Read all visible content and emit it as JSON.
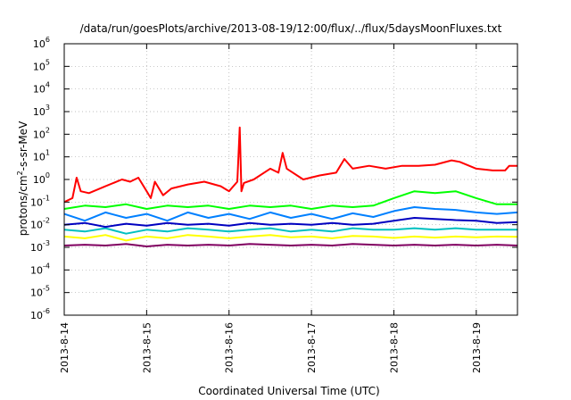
{
  "chart_data": {
    "type": "line",
    "title": "/data/run/goesPlots/archive/2013-08-19/12:00/flux/../flux/5daysMoonFluxes.txt",
    "xlabel": "Coordinated Universal Time (UTC)",
    "ylabel_parts": {
      "pre": "protons/cm",
      "sup": "2",
      "post": "-s-sr-MeV"
    },
    "y_scale": "log",
    "ylim": [
      1e-06,
      1000000.0
    ],
    "xlim": [
      0,
      5.5
    ],
    "grid": true,
    "legend": "none",
    "x_ticks": [
      {
        "x": 0,
        "label": "2013-8-14"
      },
      {
        "x": 1,
        "label": "2013-8-15"
      },
      {
        "x": 2,
        "label": "2013-8-16"
      },
      {
        "x": 3,
        "label": "2013-8-17"
      },
      {
        "x": 4,
        "label": "2013-8-18"
      },
      {
        "x": 5,
        "label": "2013-8-19"
      }
    ],
    "y_ticks": [
      {
        "base": "10",
        "exp": "-6",
        "value": 1e-06
      },
      {
        "base": "10",
        "exp": "-5",
        "value": 1e-05
      },
      {
        "base": "10",
        "exp": "-4",
        "value": 0.0001
      },
      {
        "base": "10",
        "exp": "-3",
        "value": 0.001
      },
      {
        "base": "10",
        "exp": "-2",
        "value": 0.01
      },
      {
        "base": "10",
        "exp": "-1",
        "value": 0.1
      },
      {
        "base": "10",
        "exp": "0",
        "value": 1
      },
      {
        "base": "10",
        "exp": "1",
        "value": 10
      },
      {
        "base": "10",
        "exp": "2",
        "value": 100
      },
      {
        "base": "10",
        "exp": "3",
        "value": 1000
      },
      {
        "base": "10",
        "exp": "4",
        "value": 10000
      },
      {
        "base": "10",
        "exp": "5",
        "value": 100000
      },
      {
        "base": "10",
        "exp": "6",
        "value": 1000000
      }
    ],
    "series": [
      {
        "color": "#800060",
        "x": [
          0,
          0.25,
          0.5,
          0.75,
          1,
          1.25,
          1.5,
          1.75,
          2,
          2.25,
          2.5,
          2.75,
          3,
          3.25,
          3.5,
          3.75,
          4,
          4.25,
          4.5,
          4.75,
          5,
          5.25,
          5.5
        ],
        "values": [
          0.0012,
          0.0013,
          0.0012,
          0.0014,
          0.0011,
          0.0013,
          0.0012,
          0.0013,
          0.0012,
          0.0014,
          0.0013,
          0.0012,
          0.0013,
          0.0012,
          0.0014,
          0.0013,
          0.0012,
          0.0013,
          0.0012,
          0.0013,
          0.0012,
          0.0013,
          0.0012
        ]
      },
      {
        "color": "#ffff00",
        "x": [
          0,
          0.25,
          0.5,
          0.75,
          1,
          1.25,
          1.5,
          1.75,
          2,
          2.25,
          2.5,
          2.75,
          3,
          3.25,
          3.5,
          3.75,
          4,
          4.25,
          4.5,
          4.75,
          5,
          5.25,
          5.5
        ],
        "values": [
          0.003,
          0.0025,
          0.0035,
          0.002,
          0.003,
          0.0025,
          0.0035,
          0.003,
          0.0025,
          0.003,
          0.0035,
          0.0028,
          0.003,
          0.0025,
          0.0032,
          0.003,
          0.0026,
          0.003,
          0.0027,
          0.003,
          0.0028,
          0.003,
          0.0029
        ]
      },
      {
        "color": "#00c0c0",
        "x": [
          0,
          0.25,
          0.5,
          0.75,
          1,
          1.25,
          1.5,
          1.75,
          2,
          2.25,
          2.5,
          2.75,
          3,
          3.25,
          3.5,
          3.75,
          4,
          4.25,
          4.5,
          4.75,
          5,
          5.25,
          5.5
        ],
        "values": [
          0.006,
          0.005,
          0.007,
          0.004,
          0.006,
          0.005,
          0.007,
          0.006,
          0.005,
          0.006,
          0.007,
          0.005,
          0.006,
          0.005,
          0.007,
          0.006,
          0.006,
          0.007,
          0.006,
          0.007,
          0.006,
          0.006,
          0.006
        ]
      },
      {
        "color": "#0000c0",
        "x": [
          0,
          0.25,
          0.5,
          0.75,
          1,
          1.25,
          1.5,
          1.75,
          2,
          2.25,
          2.5,
          2.75,
          3,
          3.25,
          3.5,
          3.75,
          4,
          4.25,
          4.5,
          4.75,
          5,
          5.25,
          5.5
        ],
        "values": [
          0.01,
          0.012,
          0.008,
          0.011,
          0.009,
          0.012,
          0.01,
          0.011,
          0.009,
          0.012,
          0.01,
          0.011,
          0.01,
          0.012,
          0.01,
          0.011,
          0.015,
          0.02,
          0.018,
          0.016,
          0.015,
          0.012,
          0.013
        ]
      },
      {
        "color": "#0080ff",
        "x": [
          0,
          0.25,
          0.5,
          0.75,
          1,
          1.25,
          1.5,
          1.75,
          2,
          2.25,
          2.5,
          2.75,
          3,
          3.25,
          3.5,
          3.75,
          4,
          4.25,
          4.5,
          4.75,
          5,
          5.25,
          5.5
        ],
        "values": [
          0.03,
          0.015,
          0.035,
          0.02,
          0.03,
          0.015,
          0.035,
          0.02,
          0.03,
          0.018,
          0.035,
          0.02,
          0.03,
          0.018,
          0.032,
          0.022,
          0.04,
          0.06,
          0.05,
          0.045,
          0.035,
          0.03,
          0.035
        ]
      },
      {
        "color": "#00ff00",
        "x": [
          0,
          0.25,
          0.5,
          0.75,
          1,
          1.25,
          1.5,
          1.75,
          2,
          2.25,
          2.5,
          2.75,
          3,
          3.25,
          3.5,
          3.75,
          4,
          4.25,
          4.5,
          4.75,
          5,
          5.25,
          5.5
        ],
        "values": [
          0.05,
          0.07,
          0.06,
          0.08,
          0.05,
          0.07,
          0.06,
          0.07,
          0.05,
          0.07,
          0.06,
          0.07,
          0.05,
          0.07,
          0.06,
          0.07,
          0.15,
          0.3,
          0.25,
          0.3,
          0.15,
          0.08,
          0.08
        ]
      },
      {
        "color": "#ff0000",
        "x": [
          0,
          0.1,
          0.15,
          0.2,
          0.3,
          0.5,
          0.7,
          0.8,
          0.9,
          1.0,
          1.05,
          1.1,
          1.2,
          1.3,
          1.5,
          1.7,
          1.9,
          2.0,
          2.1,
          2.13,
          2.15,
          2.18,
          2.3,
          2.5,
          2.6,
          2.65,
          2.7,
          2.9,
          3.1,
          3.3,
          3.4,
          3.5,
          3.7,
          3.9,
          4.1,
          4.3,
          4.5,
          4.7,
          4.8,
          5.0,
          5.2,
          5.35,
          5.4,
          5.5
        ],
        "values": [
          0.1,
          0.15,
          1.2,
          0.3,
          0.25,
          0.5,
          1.0,
          0.8,
          1.2,
          0.3,
          0.15,
          0.8,
          0.2,
          0.4,
          0.6,
          0.8,
          0.5,
          0.3,
          0.8,
          200,
          0.3,
          0.7,
          1.0,
          3.0,
          2.0,
          15,
          3.0,
          1.0,
          1.5,
          2.0,
          8.0,
          3.0,
          4.0,
          3.0,
          4.0,
          4.0,
          4.5,
          7.0,
          6.0,
          3.0,
          2.5,
          2.5,
          4.0,
          4.0
        ]
      }
    ]
  }
}
